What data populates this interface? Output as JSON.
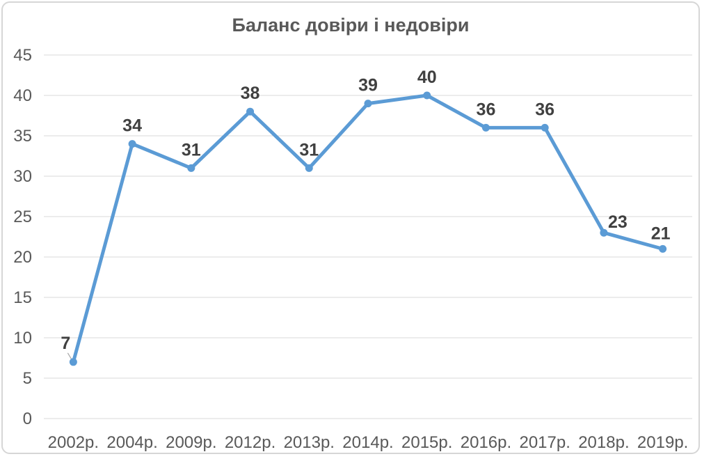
{
  "chart_data": {
    "type": "line",
    "title": "Баланс довіри і недовіри",
    "categories": [
      "2002р.",
      "2004р.",
      "2009р.",
      "2012р.",
      "2013р.",
      "2014р.",
      "2015р.",
      "2016р.",
      "2017р.",
      "2018р.",
      "2019р."
    ],
    "values": [
      7,
      34,
      31,
      38,
      31,
      39,
      40,
      36,
      36,
      23,
      21
    ],
    "ylabel": "",
    "xlabel": "",
    "ylim": [
      0,
      45
    ],
    "ytick_step": 5,
    "yticks": [
      0,
      5,
      10,
      15,
      20,
      25,
      30,
      35,
      40,
      45
    ],
    "grid": "horizontal",
    "legend": "none",
    "data_labels_visible": true,
    "line_color": "#5B9BD5",
    "marker_color": "#5B9BD5",
    "data_label_color": "#404040",
    "axis_label_color": "#595959",
    "gridline_color": "#D9D9D9",
    "frame_color": "#D6D6D6",
    "leader_line_color": "#A6A6A6",
    "label_offsets": {
      "0": [
        -11,
        -19
      ],
      "9": [
        20,
        -7
      ],
      "10": [
        -3,
        -14
      ]
    },
    "default_label_offset": [
      0,
      -18
    ],
    "leader_line_point_index": 0
  }
}
